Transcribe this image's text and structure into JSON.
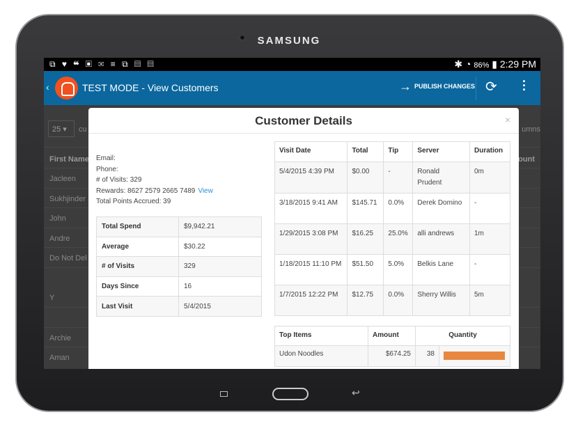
{
  "device": {
    "brand": "SAMSUNG"
  },
  "status_bar": {
    "icons": "⧉ ♥ ❝ ▣ ✉ ≡ ⧉ ▤ ▤",
    "bluetooth": "✱",
    "mute": "🔇",
    "wifi": "◔",
    "battery": "86%",
    "time": "2:29 PM"
  },
  "app_bar": {
    "back": "‹",
    "title": "TEST MODE - View Customers",
    "publish_label": "PUBLISH CHANGES",
    "refresh": "⟳",
    "menu": "⋮"
  },
  "background": {
    "page_size": "25 ▾",
    "search_partial": "cu",
    "columns_partial": "umns",
    "first_name_header": "First Name",
    "amount_header": "ount",
    "names": [
      "Jacleen",
      "Sukhjinder",
      "John",
      "Andre",
      "Do Not Del",
      "",
      "Y",
      "",
      "Archie",
      "Aman"
    ]
  },
  "modal": {
    "title": "Customer Details",
    "close": "×",
    "info": {
      "email": "Email:",
      "phone": "Phone:",
      "visits": "# of Visits: 329",
      "rewards": "Rewards: 8627 2579 2665 7489",
      "view_link": "View",
      "points": "Total Points Accrued: 39"
    },
    "stats": [
      [
        "Total Spend",
        "$9,942.21"
      ],
      [
        "Average",
        "$30.22"
      ],
      [
        "# of Visits",
        "329"
      ],
      [
        "Days Since",
        "16"
      ],
      [
        "Last Visit",
        "5/4/2015"
      ]
    ],
    "visits": {
      "headers": [
        "Visit Date",
        "Total",
        "Tip",
        "Server",
        "Duration"
      ],
      "rows": [
        [
          "5/4/2015 4:39 PM",
          "$0.00",
          "-",
          "Ronald Prudent",
          "0m"
        ],
        [
          "3/18/2015 9:41 AM",
          "$145.71",
          "0.0%",
          "Derek Domino",
          "-"
        ],
        [
          "1/29/2015 3:08 PM",
          "$16.25",
          "25.0%",
          "alli andrews",
          "1m"
        ],
        [
          "1/18/2015 11:10 PM",
          "$51.50",
          "5.0%",
          "Belkis Lane",
          "-"
        ],
        [
          "1/7/2015 12:22 PM",
          "$12.75",
          "0.0%",
          "Sherry Willis",
          "5m"
        ]
      ]
    },
    "top_items": {
      "headers": [
        "Top Items",
        "Amount",
        "Quantity"
      ],
      "rows": [
        {
          "item": "Udon Noodles",
          "amount": "$674.25",
          "quantity": "38",
          "bar_fraction": 1.0
        }
      ],
      "bar_color": "#e8873f"
    }
  },
  "colors": {
    "app_bar": "#0b679e",
    "logo": "#f0511f",
    "link": "#2a8ed6"
  }
}
